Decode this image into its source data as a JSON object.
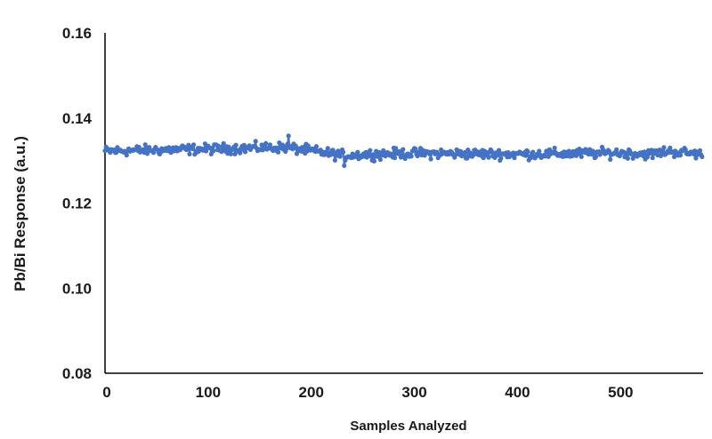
{
  "chart_data": {
    "type": "line",
    "title": "",
    "xlabel": "Samples Analyzed",
    "ylabel": "Pb/Bi Response (a.u.)",
    "xlim": [
      0,
      580
    ],
    "ylim": [
      0.08,
      0.16
    ],
    "x_ticks": [
      0,
      100,
      200,
      300,
      400,
      500
    ],
    "y_ticks": [
      0.08,
      0.1,
      0.12,
      0.14,
      0.16
    ],
    "x_tick_labels": [
      "0",
      "100",
      "200",
      "300",
      "400",
      "500"
    ],
    "y_tick_labels": [
      "0.08",
      "0.10",
      "0.12",
      "0.14",
      "0.16"
    ],
    "grid": false,
    "markers": true,
    "series": [
      {
        "color": "#4472C4",
        "n_points": 580,
        "profile": {
          "x": [
            0,
            50,
            100,
            150,
            175,
            200,
            230,
            260,
            300,
            350,
            400,
            450,
            500,
            530,
            545,
            580
          ],
          "mean": [
            0.1322,
            0.1325,
            0.1327,
            0.133,
            0.1331,
            0.1323,
            0.1312,
            0.1315,
            0.1317,
            0.1316,
            0.1315,
            0.1316,
            0.1318,
            0.1315,
            0.1322,
            0.1315
          ]
        },
        "spread": 0.0009,
        "max_point": {
          "x": 178,
          "y": 0.1358
        },
        "min_point": {
          "x": 232,
          "y": 0.1288
        }
      }
    ]
  }
}
